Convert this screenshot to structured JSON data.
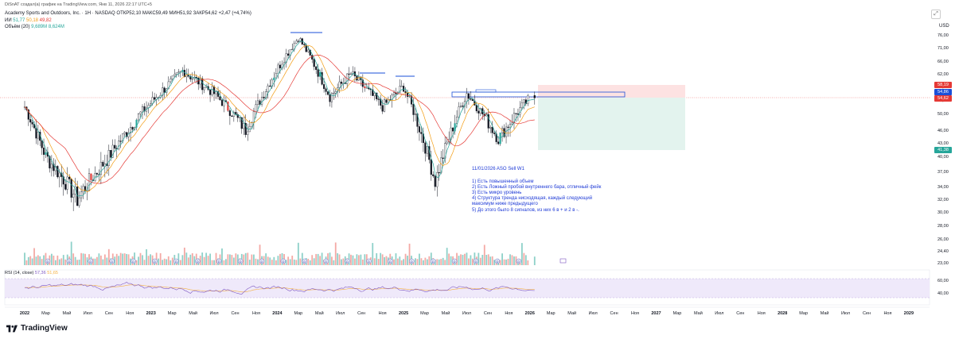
{
  "header": {
    "published_by": "DiSnAT создал(а) график на TradingView.com, Янв 11, 2026 22:17 UTC+5",
    "symbol_line": "Academy Sports and Outdoors, Inc. · 1Н · NASDAQ",
    "ohlc": "ОТКР52,10 МАКС59,49 МИН51,92 ЗАКР54,62 +2,47 (+4,74%)",
    "ma_label": "ИИ",
    "ma_values": [
      "51,77",
      "50,18",
      "49,82"
    ],
    "volume_label": "Объём (20)",
    "volume_values": [
      "9,689М",
      "8,624М"
    ]
  },
  "axis": {
    "currency": "USD",
    "y_ticks": [
      "76,00",
      "71,00",
      "66,00",
      "62,00",
      "58,00",
      "54,00",
      "50,00",
      "46,00",
      "43,00",
      "40,00",
      "37,00",
      "34,00",
      "32,00",
      "30,00",
      "28,00",
      "26,00",
      "24,40",
      "23,00"
    ],
    "x_labels": [
      "2022",
      "Мар",
      "Май",
      "Июл",
      "Сен",
      "Ноя",
      "2023",
      "Мар",
      "Май",
      "Июл",
      "Сен",
      "Ноя",
      "2024",
      "Мар",
      "Май",
      "Июл",
      "Сен",
      "Ноя",
      "2025",
      "Мар",
      "Май",
      "Июл",
      "Сен",
      "Ноя",
      "2026",
      "Мар",
      "Май",
      "Июл",
      "Сен",
      "Ноя",
      "2027",
      "Мар",
      "Май",
      "Июл",
      "Сен",
      "Ноя",
      "2028",
      "Мар",
      "Май",
      "Июл",
      "Сен",
      "Ноя",
      "2029"
    ],
    "rsi_ticks": [
      "60,00",
      "40,00"
    ]
  },
  "price_tags": {
    "top": "58,19",
    "entry": "54,86",
    "close": "54,62",
    "target": "41,38"
  },
  "annotation": {
    "title": "11/01/2026 ASO Sell W1",
    "lines": [
      "1) Есть повышенный объем",
      "2) Есть Ложный пробой внутреннего бара, отличный фейк",
      "3) Есть микро уровень",
      "4) Структура тренда нисходящая, каждый следующий максимум ниже предыдущего",
      "5) До этого было 8 сигналов, из них 6 в + и 2 в -."
    ]
  },
  "rsi": {
    "label": "RSI (14, close)",
    "values": [
      "57,36",
      "51,65"
    ]
  },
  "footer": {
    "brand": "TradingView"
  },
  "colors": {
    "up": "#26a69a",
    "down": "#e53935",
    "candle": "#131722",
    "ma_fast": "#26a69a",
    "ma_mid": "#f39c12",
    "ma_slow": "#e53935",
    "rsi": "#7e57c2",
    "rsi_ma": "#f5b041",
    "level": "#1a4fd8",
    "stop_zone": "#fde2e2",
    "target_zone": "#e3f3ee"
  },
  "chart_data": {
    "type": "candlestick",
    "symbol": "ASO",
    "exchange": "NASDAQ",
    "timeframe": "1W",
    "last_bar": {
      "open": 52.1,
      "high": 59.49,
      "low": 51.92,
      "close": 54.62,
      "change": 2.47,
      "change_pct": 4.74
    },
    "moving_averages": [
      51.77,
      50.18,
      49.82
    ],
    "volume": {
      "value": "9,689M",
      "ma20": "8,624M"
    },
    "position": {
      "side": "short",
      "stop": 58.19,
      "entry": 54.86,
      "target": 41.38
    },
    "rsi": {
      "period": 14,
      "value": 57.36,
      "ma": 51.65
    },
    "swing_points": [
      {
        "date": "2022-01",
        "price": 52
      },
      {
        "date": "2022-03",
        "price": 40
      },
      {
        "date": "2022-06",
        "price": 32
      },
      {
        "date": "2022-09",
        "price": 40
      },
      {
        "date": "2022-12",
        "price": 50
      },
      {
        "date": "2023-04",
        "price": 63
      },
      {
        "date": "2023-07",
        "price": 56
      },
      {
        "date": "2023-10",
        "price": 46
      },
      {
        "date": "2024-03",
        "price": 75
      },
      {
        "date": "2024-06",
        "price": 55
      },
      {
        "date": "2024-08",
        "price": 62
      },
      {
        "date": "2024-11",
        "price": 52
      },
      {
        "date": "2025-01",
        "price": 58
      },
      {
        "date": "2025-04",
        "price": 35
      },
      {
        "date": "2025-07",
        "price": 56
      },
      {
        "date": "2025-10",
        "price": 44
      },
      {
        "date": "2026-01",
        "price": 54.62
      }
    ]
  }
}
